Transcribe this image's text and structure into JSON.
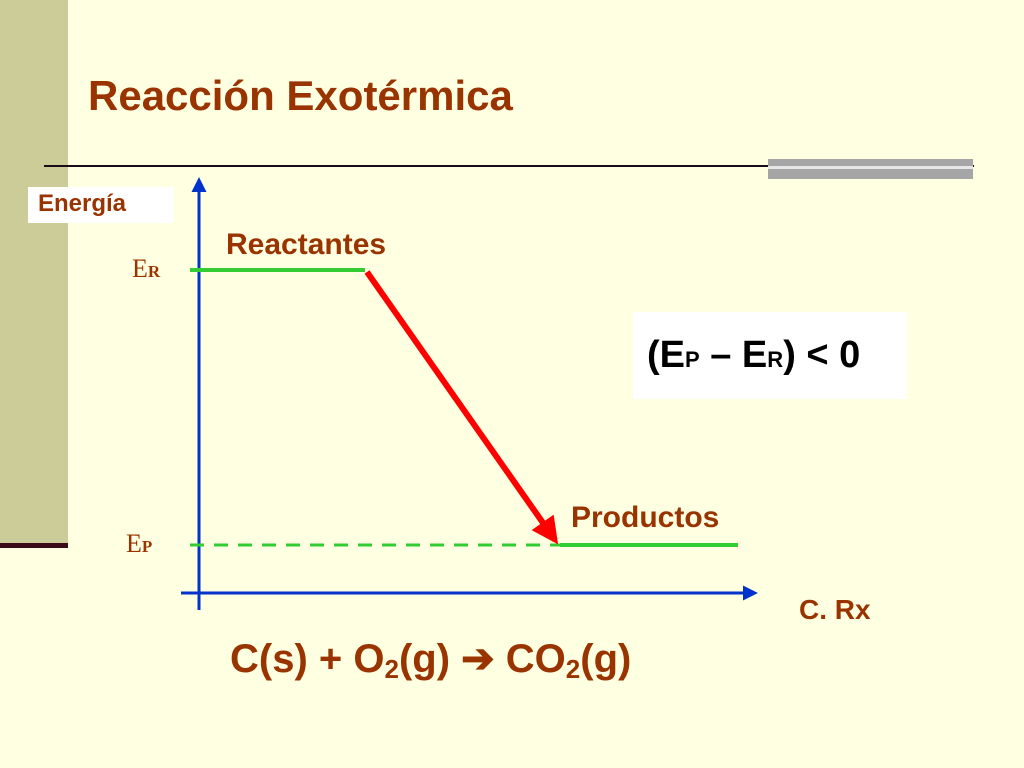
{
  "title": "Reacción Exotérmica",
  "axes": {
    "y_label": "Energía",
    "x_label": "C. Rx"
  },
  "levels": {
    "reactants_label": "Reactantes",
    "products_label": "Productos",
    "er_main": "E",
    "er_sub": "R",
    "ep_main": "E",
    "ep_sub": "P"
  },
  "delta": {
    "open": "(E",
    "p": "P",
    "minus": " – E",
    "r": "R",
    "close": ")",
    "lt": " < ",
    "zero": "0"
  },
  "equation": {
    "c": "C(s)",
    "plus": " + O",
    "o2_sub": "2",
    "g1": "(g) ",
    "arrow": "➔",
    "co": " CO",
    "co2_sub": "2",
    "g2": "(g)"
  },
  "colors": {
    "title": "#993300",
    "axis": "#0033CC",
    "level_line": "#33CC33",
    "reaction_arrow": "#FF0000",
    "background": "#FFFFE1",
    "side_bar": "#CCCC99"
  }
}
